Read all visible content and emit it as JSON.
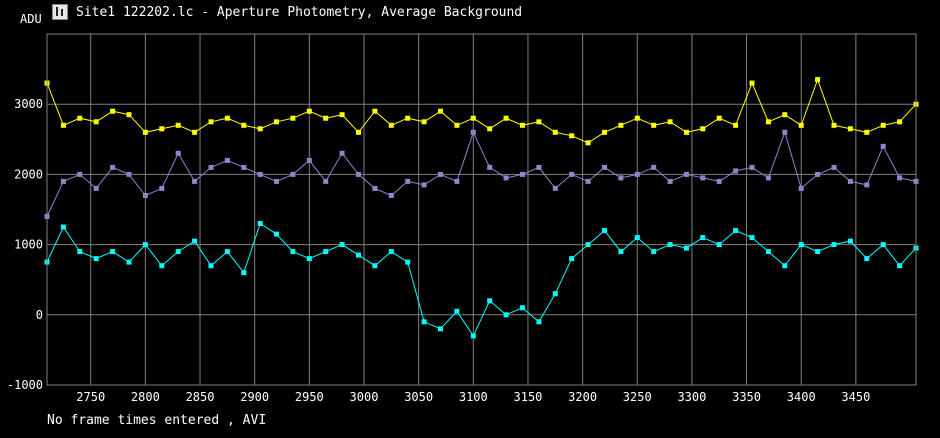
{
  "window": {
    "title": "Site1 122202.lc - Aperture Photometry, Average Background",
    "icon": "app-icon"
  },
  "footer_text": "No frame times entered , AVI",
  "colors": {
    "background": "#000000",
    "grid": "#808080",
    "text": "#ffffff"
  },
  "chart_data": {
    "type": "scatter",
    "title": "",
    "xlabel": "",
    "ylabel": "ADU",
    "xlim": [
      2710,
      3505
    ],
    "ylim": [
      -1000,
      4000
    ],
    "x_ticks": [
      2750,
      2800,
      2850,
      2900,
      2950,
      3000,
      3050,
      3100,
      3150,
      3200,
      3250,
      3300,
      3350,
      3400,
      3450
    ],
    "y_ticks": [
      -1000,
      0,
      1000,
      2000,
      3000
    ],
    "grid": true,
    "legend": "none",
    "series": [
      {
        "color": "#ffff00",
        "x": [
          2710,
          2725,
          2740,
          2755,
          2770,
          2785,
          2800,
          2815,
          2830,
          2845,
          2860,
          2875,
          2890,
          2905,
          2920,
          2935,
          2950,
          2965,
          2980,
          2995,
          3010,
          3025,
          3040,
          3055,
          3070,
          3085,
          3100,
          3115,
          3130,
          3145,
          3160,
          3175,
          3190,
          3205,
          3220,
          3235,
          3250,
          3265,
          3280,
          3295,
          3310,
          3325,
          3340,
          3355,
          3370,
          3385,
          3400,
          3415,
          3430,
          3445,
          3460,
          3475,
          3490,
          3505
        ],
        "values": [
          3300,
          2700,
          2800,
          2750,
          2900,
          2850,
          2600,
          2650,
          2700,
          2600,
          2750,
          2800,
          2700,
          2650,
          2750,
          2800,
          2900,
          2800,
          2850,
          2600,
          2900,
          2700,
          2800,
          2750,
          2900,
          2700,
          2800,
          2650,
          2800,
          2700,
          2750,
          2600,
          2550,
          2450,
          2600,
          2700,
          2800,
          2700,
          2750,
          2600,
          2650,
          2800,
          2700,
          3300,
          2750,
          2850,
          2700,
          3350,
          2700,
          2650,
          2600,
          2700,
          2750,
          3000
        ]
      },
      {
        "color": "#8888cc",
        "x": [
          2710,
          2725,
          2740,
          2755,
          2770,
          2785,
          2800,
          2815,
          2830,
          2845,
          2860,
          2875,
          2890,
          2905,
          2920,
          2935,
          2950,
          2965,
          2980,
          2995,
          3010,
          3025,
          3040,
          3055,
          3070,
          3085,
          3100,
          3115,
          3130,
          3145,
          3160,
          3175,
          3190,
          3205,
          3220,
          3235,
          3250,
          3265,
          3280,
          3295,
          3310,
          3325,
          3340,
          3355,
          3370,
          3385,
          3400,
          3415,
          3430,
          3445,
          3460,
          3475,
          3490,
          3505
        ],
        "values": [
          1400,
          1900,
          2000,
          1800,
          2100,
          2000,
          1700,
          1800,
          2300,
          1900,
          2100,
          2200,
          2100,
          2000,
          1900,
          2000,
          2200,
          1900,
          2300,
          2000,
          1800,
          1700,
          1900,
          1850,
          2000,
          1900,
          2600,
          2100,
          1950,
          2000,
          2100,
          1800,
          2000,
          1900,
          2100,
          1950,
          2000,
          2100,
          1900,
          2000,
          1950,
          1900,
          2050,
          2100,
          1950,
          2600,
          1800,
          2000,
          2100,
          1900,
          1850,
          2400,
          1950,
          1900
        ]
      },
      {
        "color": "#00ffff",
        "x": [
          2710,
          2725,
          2740,
          2755,
          2770,
          2785,
          2800,
          2815,
          2830,
          2845,
          2860,
          2875,
          2890,
          2905,
          2920,
          2935,
          2950,
          2965,
          2980,
          2995,
          3010,
          3025,
          3040,
          3055,
          3070,
          3085,
          3100,
          3115,
          3130,
          3145,
          3160,
          3175,
          3190,
          3205,
          3220,
          3235,
          3250,
          3265,
          3280,
          3295,
          3310,
          3325,
          3340,
          3355,
          3370,
          3385,
          3400,
          3415,
          3430,
          3445,
          3460,
          3475,
          3490,
          3505
        ],
        "values": [
          750,
          1250,
          900,
          800,
          900,
          750,
          1000,
          700,
          900,
          1050,
          700,
          900,
          600,
          1300,
          1150,
          900,
          800,
          900,
          1000,
          850,
          700,
          900,
          750,
          -100,
          -200,
          50,
          -300,
          200,
          0,
          100,
          -100,
          300,
          800,
          1000,
          1200,
          900,
          1100,
          900,
          1000,
          950,
          1100,
          1000,
          1200,
          1100,
          900,
          700,
          1000,
          900,
          1000,
          1050,
          800,
          1000,
          700,
          950
        ]
      }
    ]
  }
}
